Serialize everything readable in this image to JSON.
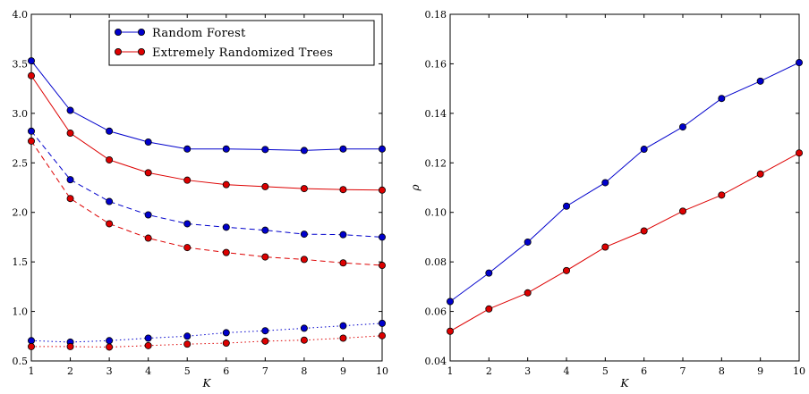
{
  "chart_data": [
    {
      "type": "line",
      "xlabel": "K",
      "ylabel": "",
      "x": [
        1,
        2,
        3,
        4,
        5,
        6,
        7,
        8,
        9,
        10
      ],
      "xlim": [
        1,
        10
      ],
      "ylim": [
        0.5,
        4.0
      ],
      "xticks": [
        "1",
        "2",
        "3",
        "4",
        "5",
        "6",
        "7",
        "8",
        "9",
        "10"
      ],
      "yticks": [
        "0.5",
        "1.0",
        "1.5",
        "2.0",
        "2.5",
        "3.0",
        "3.5",
        "4.0"
      ],
      "grid": false,
      "legend": {
        "placement": "top-center",
        "entries": [
          {
            "name": "Random Forest",
            "color": "#0000cc"
          },
          {
            "name": "Extremely Randomized Trees",
            "color": "#dd0000"
          }
        ]
      },
      "series": [
        {
          "method": "Random Forest",
          "style": "solid",
          "color": "#0000cc",
          "values": [
            3.53,
            3.03,
            2.82,
            2.71,
            2.64,
            2.64,
            2.635,
            2.625,
            2.64,
            2.64
          ]
        },
        {
          "method": "Extremely Randomized Trees",
          "style": "solid",
          "color": "#dd0000",
          "values": [
            3.38,
            2.8,
            2.53,
            2.4,
            2.325,
            2.28,
            2.26,
            2.24,
            2.23,
            2.225
          ]
        },
        {
          "method": "Random Forest",
          "style": "dashed",
          "color": "#0000cc",
          "values": [
            2.82,
            2.33,
            2.11,
            1.975,
            1.885,
            1.85,
            1.82,
            1.78,
            1.775,
            1.75
          ]
        },
        {
          "method": "Extremely Randomized Trees",
          "style": "dashed",
          "color": "#dd0000",
          "values": [
            2.72,
            2.14,
            1.885,
            1.74,
            1.645,
            1.595,
            1.55,
            1.525,
            1.49,
            1.465
          ]
        },
        {
          "method": "Random Forest",
          "style": "dotted",
          "color": "#0000cc",
          "values": [
            0.705,
            0.69,
            0.705,
            0.73,
            0.75,
            0.785,
            0.805,
            0.83,
            0.855,
            0.88
          ]
        },
        {
          "method": "Extremely Randomized Trees",
          "style": "dotted",
          "color": "#dd0000",
          "values": [
            0.645,
            0.645,
            0.64,
            0.655,
            0.67,
            0.68,
            0.7,
            0.71,
            0.73,
            0.755
          ]
        }
      ]
    },
    {
      "type": "line",
      "xlabel": "K",
      "ylabel": "ρ",
      "x": [
        1,
        2,
        3,
        4,
        5,
        6,
        7,
        8,
        9,
        10
      ],
      "xlim": [
        1,
        10
      ],
      "ylim": [
        0.04,
        0.18
      ],
      "xticks": [
        "1",
        "2",
        "3",
        "4",
        "5",
        "6",
        "7",
        "8",
        "9",
        "10"
      ],
      "yticks": [
        "0.04",
        "0.06",
        "0.08",
        "0.10",
        "0.12",
        "0.14",
        "0.16",
        "0.18"
      ],
      "grid": false,
      "series": [
        {
          "method": "Random Forest",
          "style": "solid",
          "color": "#0000cc",
          "values": [
            0.064,
            0.0755,
            0.088,
            0.1025,
            0.112,
            0.1255,
            0.1345,
            0.146,
            0.153,
            0.1605
          ]
        },
        {
          "method": "Extremely Randomized Trees",
          "style": "solid",
          "color": "#dd0000",
          "values": [
            0.052,
            0.061,
            0.0675,
            0.0765,
            0.086,
            0.0925,
            0.1005,
            0.107,
            0.1155,
            0.124
          ]
        }
      ]
    }
  ]
}
